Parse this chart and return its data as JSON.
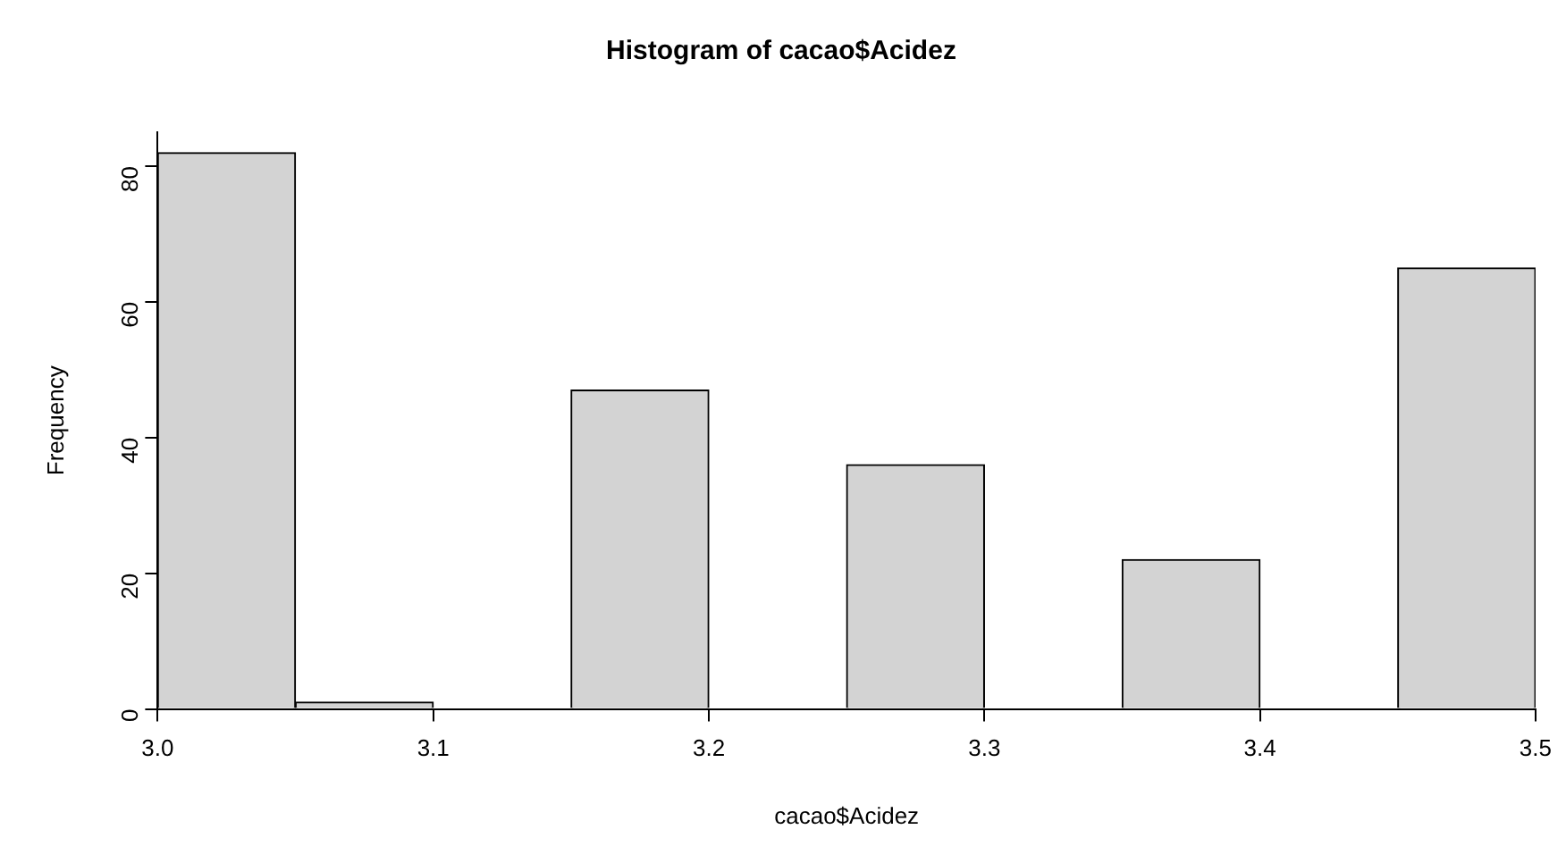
{
  "chart_data": {
    "type": "histogram",
    "title": "Histogram of cacao$Acidez",
    "xlabel": "cacao$Acidez",
    "ylabel": "Frequency",
    "bins": [
      3.0,
      3.05,
      3.1,
      3.15,
      3.2,
      3.25,
      3.3,
      3.35,
      3.4,
      3.45,
      3.5
    ],
    "values": [
      82,
      1,
      0,
      47,
      0,
      36,
      0,
      22,
      0,
      65
    ],
    "color": "#d3d3d3",
    "xlim": [
      3.0,
      3.5
    ],
    "xticks": [
      {
        "value": 3.0,
        "label": "3.0"
      },
      3.1,
      3.2,
      3.3,
      3.4,
      {
        "value": 3.5,
        "label": "3.5"
      }
    ],
    "ylim": [
      0,
      85
    ],
    "yticks": [
      0,
      20,
      40,
      60,
      80
    ],
    "grid": false,
    "legend": false
  }
}
